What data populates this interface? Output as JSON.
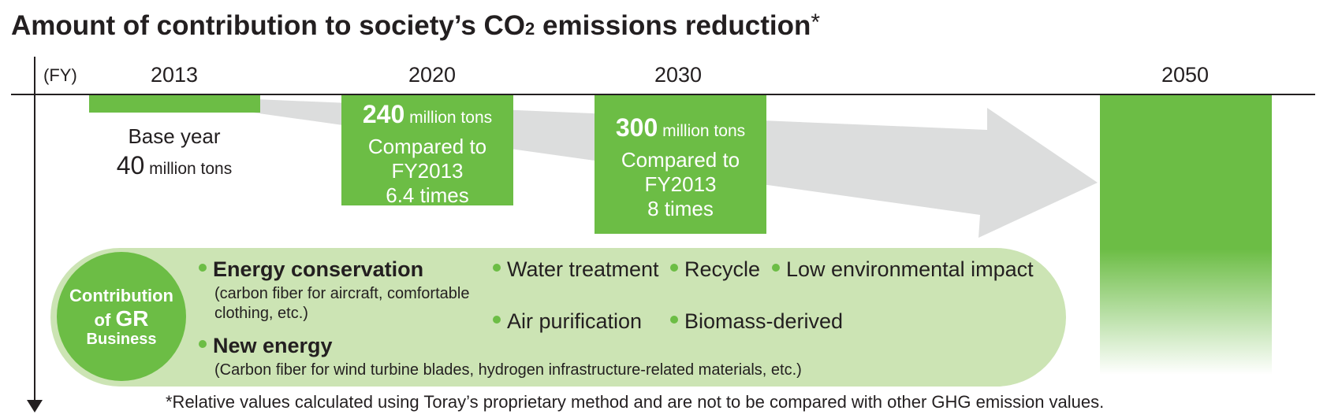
{
  "header": {
    "title_main": "Amount of contribution to society’s CO",
    "title_sub": "2",
    "title_end": " emissions reduction",
    "title_star": "*"
  },
  "axis": {
    "fy_label": "(FY)",
    "years": [
      "2013",
      "2020",
      "2030",
      "2050"
    ]
  },
  "base_year": {
    "label": "Base year",
    "value": "40",
    "unit": " million tons"
  },
  "y2020": {
    "value": "240",
    "unit": " million tons",
    "line1": "Compared to",
    "line2": "FY2013",
    "line3": "6.4 times"
  },
  "y2030": {
    "value": "300",
    "unit": " million tons",
    "line1": "Compared to",
    "line2": "FY2013",
    "line3": "8 times"
  },
  "contribution": {
    "circle_line1": "Contribution",
    "circle_of": "of ",
    "circle_gr": "GR",
    "circle_line3": "Business",
    "energy_conservation": "Energy conservation",
    "energy_conservation_desc1": "(carbon fiber for aircraft, comfortable",
    "energy_conservation_desc2": "clothing, etc.)",
    "new_energy": "New energy",
    "new_energy_desc": "(Carbon fiber for wind turbine blades, hydrogen infrastructure-related materials, etc.)",
    "water_treatment": "Water treatment",
    "recycle": "Recycle",
    "low_impact": "Low environmental impact",
    "air_purification": "Air purification",
    "biomass": "Biomass-derived"
  },
  "footnote": "*Relative values calculated using Toray’s proprietary method and are not to be compared with other GHG emission values.",
  "colors": {
    "green": "#6cbd45",
    "light_green": "#cce4b4",
    "arrow_gray": "#dcdddd"
  }
}
